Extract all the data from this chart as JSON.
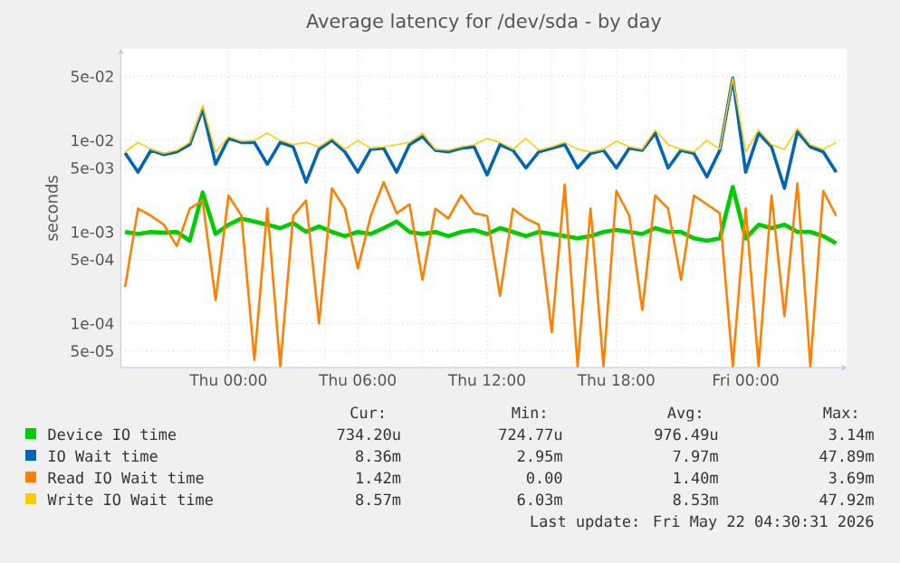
{
  "chart_data": {
    "type": "line",
    "title": "Average latency for /dev/sda - by day",
    "ylabel": "seconds",
    "log": true,
    "grid": true,
    "legend": "bottom",
    "marker": "none",
    "line_style": "solid",
    "xlim": [
      "2026-05-20T19:00",
      "2026-05-22T04:42"
    ],
    "ylim": [
      3.3e-05,
      0.1
    ],
    "xticks": [
      {
        "value": "2026-05-21T00:00",
        "label": "Thu 00:00"
      },
      {
        "value": "2026-05-21T06:00",
        "label": "Thu 06:00"
      },
      {
        "value": "2026-05-21T12:00",
        "label": "Thu 12:00"
      },
      {
        "value": "2026-05-21T18:00",
        "label": "Thu 18:00"
      },
      {
        "value": "2026-05-22T00:00",
        "label": "Fri 00:00"
      }
    ],
    "yticks": [
      {
        "value": 5e-05,
        "label": "5e-05"
      },
      {
        "value": 0.0001,
        "label": "1e-04"
      },
      {
        "value": 0.0005,
        "label": "5e-04"
      },
      {
        "value": 0.001,
        "label": "1e-03"
      },
      {
        "value": 0.005,
        "label": "5e-03"
      },
      {
        "value": 0.01,
        "label": "1e-02"
      },
      {
        "value": 0.05,
        "label": "5e-02"
      }
    ],
    "x": [
      "2026-05-20T19:12",
      "2026-05-20T19:48",
      "2026-05-20T20:24",
      "2026-05-20T21:00",
      "2026-05-20T21:36",
      "2026-05-20T22:12",
      "2026-05-20T22:48",
      "2026-05-20T23:24",
      "2026-05-21T00:00",
      "2026-05-21T00:36",
      "2026-05-21T01:12",
      "2026-05-21T01:48",
      "2026-05-21T02:24",
      "2026-05-21T03:00",
      "2026-05-21T03:36",
      "2026-05-21T04:12",
      "2026-05-21T04:48",
      "2026-05-21T05:24",
      "2026-05-21T06:00",
      "2026-05-21T06:36",
      "2026-05-21T07:12",
      "2026-05-21T07:48",
      "2026-05-21T08:24",
      "2026-05-21T09:00",
      "2026-05-21T09:36",
      "2026-05-21T10:12",
      "2026-05-21T10:48",
      "2026-05-21T11:24",
      "2026-05-21T12:00",
      "2026-05-21T12:36",
      "2026-05-21T13:12",
      "2026-05-21T13:48",
      "2026-05-21T14:24",
      "2026-05-21T15:00",
      "2026-05-21T15:36",
      "2026-05-21T16:12",
      "2026-05-21T16:48",
      "2026-05-21T17:24",
      "2026-05-21T18:00",
      "2026-05-21T18:36",
      "2026-05-21T19:12",
      "2026-05-21T19:48",
      "2026-05-21T20:24",
      "2026-05-21T21:00",
      "2026-05-21T21:36",
      "2026-05-21T22:12",
      "2026-05-21T22:48",
      "2026-05-21T23:24",
      "2026-05-22T00:00",
      "2026-05-22T00:36",
      "2026-05-22T01:12",
      "2026-05-22T01:48",
      "2026-05-22T02:24",
      "2026-05-22T03:00",
      "2026-05-22T03:36",
      "2026-05-22T04:12"
    ],
    "series": [
      {
        "name": "Device IO time",
        "color": "#00cc00",
        "values": [
          0.001,
          0.00095,
          0.001,
          0.00098,
          0.001,
          0.0008,
          0.0027,
          0.00095,
          0.0012,
          0.0014,
          0.0013,
          0.0012,
          0.0011,
          0.00125,
          0.001,
          0.00115,
          0.001,
          0.0009,
          0.001,
          0.00095,
          0.0011,
          0.0013,
          0.001,
          0.00095,
          0.001,
          0.0009,
          0.001,
          0.00105,
          0.00095,
          0.0011,
          0.001,
          0.0009,
          0.001,
          0.00095,
          0.0009,
          0.00085,
          0.0009,
          0.001,
          0.00105,
          0.001,
          0.00095,
          0.0011,
          0.001,
          0.001,
          0.00085,
          0.0008,
          0.00085,
          0.0031,
          0.00085,
          0.0012,
          0.0011,
          0.0012,
          0.001,
          0.001,
          0.0009,
          0.00075
        ]
      },
      {
        "name": "IO Wait time",
        "color": "#0066b3",
        "values": [
          0.0073,
          0.0045,
          0.0078,
          0.007,
          0.0075,
          0.009,
          0.022,
          0.0055,
          0.0105,
          0.0095,
          0.0095,
          0.0055,
          0.0095,
          0.0085,
          0.0035,
          0.008,
          0.01,
          0.0075,
          0.0045,
          0.008,
          0.0082,
          0.0045,
          0.009,
          0.011,
          0.0078,
          0.0075,
          0.0082,
          0.0085,
          0.0042,
          0.009,
          0.0078,
          0.005,
          0.0075,
          0.0082,
          0.009,
          0.005,
          0.0072,
          0.0078,
          0.005,
          0.0082,
          0.0078,
          0.012,
          0.005,
          0.0078,
          0.0072,
          0.004,
          0.0078,
          0.0479,
          0.0045,
          0.012,
          0.0085,
          0.003,
          0.0125,
          0.0085,
          0.0075,
          0.0045
        ]
      },
      {
        "name": "Read IO Wait time",
        "color": "#ff8000",
        "values": [
          0.00025,
          0.0018,
          0.0015,
          0.0012,
          0.0007,
          0.0018,
          0.0022,
          0.00018,
          0.0025,
          0.0015,
          4e-05,
          0.0018,
          3.4e-05,
          0.0015,
          0.0022,
          0.0001,
          0.003,
          0.0018,
          0.0004,
          0.0015,
          0.0035,
          0.0016,
          0.002,
          0.0003,
          0.0018,
          0.0014,
          0.0025,
          0.0016,
          0.0015,
          0.0002,
          0.0018,
          0.0014,
          0.0012,
          8e-05,
          0.0033,
          3.4e-05,
          0.0018,
          3.4e-05,
          0.0028,
          0.0015,
          0.00014,
          0.0025,
          0.0018,
          0.0003,
          0.0025,
          0.002,
          0.0016,
          3.4e-05,
          0.0018,
          3.4e-05,
          0.0025,
          0.00012,
          0.0034,
          3.4e-05,
          0.0028,
          0.0015
        ]
      },
      {
        "name": "Write IO Wait time",
        "color": "#ffcc00",
        "values": [
          0.0075,
          0.0095,
          0.008,
          0.0072,
          0.0078,
          0.0095,
          0.024,
          0.0074,
          0.011,
          0.0098,
          0.01,
          0.012,
          0.01,
          0.009,
          0.0095,
          0.0085,
          0.0105,
          0.008,
          0.01,
          0.0082,
          0.0085,
          0.009,
          0.0095,
          0.012,
          0.008,
          0.0078,
          0.0085,
          0.009,
          0.0105,
          0.0095,
          0.008,
          0.0105,
          0.0078,
          0.0085,
          0.0095,
          0.008,
          0.0075,
          0.008,
          0.0098,
          0.0085,
          0.008,
          0.013,
          0.009,
          0.008,
          0.0075,
          0.01,
          0.008,
          0.048,
          0.0075,
          0.013,
          0.009,
          0.008,
          0.0135,
          0.009,
          0.008,
          0.0095
        ]
      }
    ],
    "annotations": [
      "Cur:",
      "Min:",
      "Avg:",
      "Max:",
      "734.20u",
      "724.77u",
      "976.49u",
      "3.14m",
      "8.36m",
      "2.95m",
      "7.97m",
      "47.89m",
      "1.42m",
      "0.00",
      "1.40m",
      "3.69m",
      "8.57m",
      "6.03m",
      "8.53m",
      "47.92m",
      "Last update: Fri May 22 04:30:31 2026"
    ]
  }
}
